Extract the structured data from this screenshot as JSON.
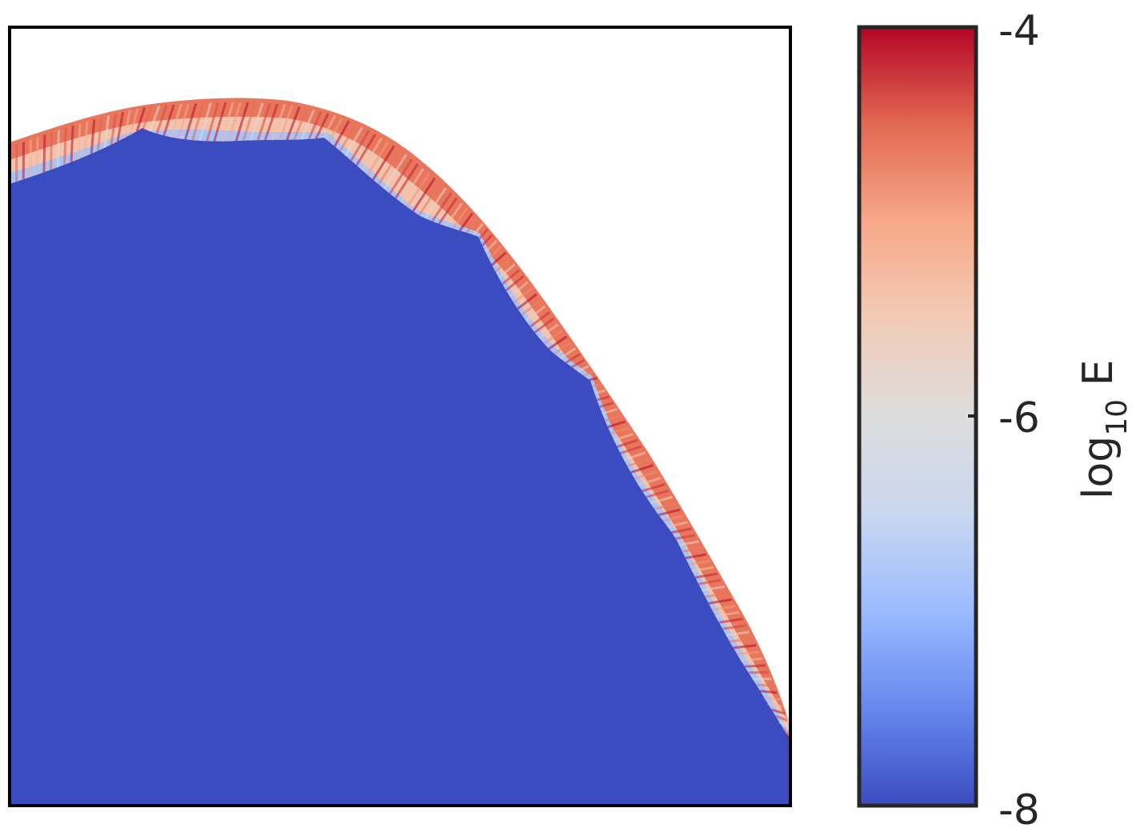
{
  "chart_data": {
    "type": "heatmap",
    "title": "",
    "xlabel": "",
    "ylabel": "",
    "colormap": "coolwarm",
    "colorbar": {
      "label_main": "log",
      "label_sub": "10",
      "label_tail": " E",
      "range": [
        -8,
        -4
      ],
      "ticks": [
        -4,
        -6,
        -8
      ],
      "tick_labels": [
        "-4",
        "-6",
        "-8"
      ],
      "stops": [
        "#3b4cc0",
        "#6788ee",
        "#9abbff",
        "#c9d7f0",
        "#dddcdc",
        "#f2cbb7",
        "#f7a889",
        "#e26952",
        "#b40426"
      ]
    },
    "field": {
      "interior_value": -8,
      "exterior_value": null,
      "boundary_peak_value": -4,
      "boundary_band_min_value": -7
    },
    "colors": {
      "interior": "#3b4cc0",
      "exterior": "#ffffff",
      "frame": "#000000",
      "colorbar_frame": "#262626"
    }
  }
}
